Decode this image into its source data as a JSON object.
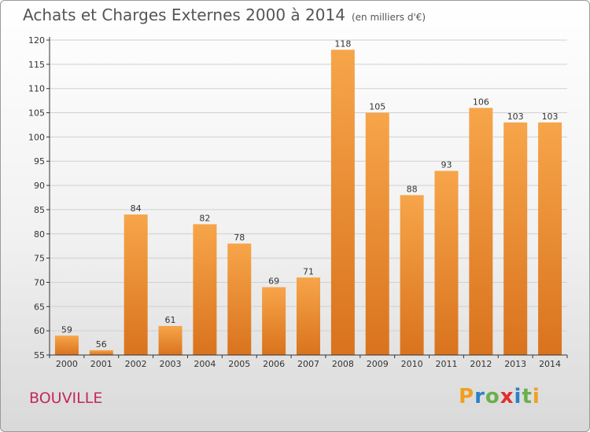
{
  "title": "Achats et Charges Externes 2000 à 2014",
  "subtitle": "(en milliers d'€)",
  "commune": "BOUVILLE",
  "brand": {
    "letters": [
      "P",
      "r",
      "o",
      "x",
      "i",
      "t",
      "i"
    ],
    "colors": [
      "#f0a020",
      "#2c7fc8",
      "#6ab04c",
      "#e03030",
      "#2c7fc8",
      "#6ab04c",
      "#f0a020"
    ]
  },
  "colors": {
    "bar_light": "#f7a54a",
    "bar_dark": "#d9731d",
    "grid": "#d0d0d0",
    "axis": "#333333"
  },
  "chart_data": {
    "type": "bar",
    "title": "Achats et Charges Externes 2000 à 2014",
    "subtitle": "(en milliers d'€)",
    "xlabel": "",
    "ylabel": "",
    "categories": [
      "2000",
      "2001",
      "2002",
      "2003",
      "2004",
      "2005",
      "2006",
      "2007",
      "2008",
      "2009",
      "2010",
      "2011",
      "2012",
      "2013",
      "2014"
    ],
    "values": [
      59,
      56,
      84,
      61,
      82,
      78,
      69,
      71,
      118,
      105,
      88,
      93,
      106,
      103,
      103
    ],
    "ylim": [
      55,
      120
    ],
    "yticks": [
      55,
      60,
      65,
      70,
      75,
      80,
      85,
      90,
      95,
      100,
      105,
      110,
      115,
      120
    ],
    "grid": true,
    "legend": "none"
  }
}
